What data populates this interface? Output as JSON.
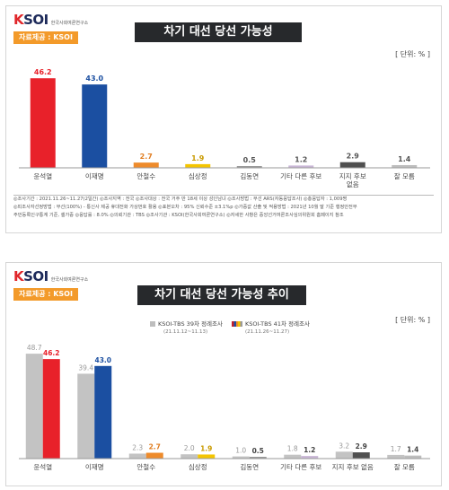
{
  "panels": {
    "top": {
      "logo": "KSOI",
      "logo_sub": "한국사회여론연구소",
      "source_badge": "자료제공 : KSOI",
      "title": "차기 대선 당선 가능성",
      "unit": "[ 단위: % ]",
      "footer": [
        "◎조사기간 : 2021.11.26~11.27(2일간)   ◎조사지역 : 전국   ◎조사대상 : 전국 거주 만 18세 이상 성인남녀   ◎조사방법 : 무선 ARS(자동응답조사)   ◎총응답자 : 1,009명",
        "◎피조사자선정방법 : 무선(100%) - 통신사 제공 휴대전화 가상번호 활용   ◎표본오차 : 95% 신뢰수준 ±3.1%p   ◎가중값 산출 및 적용방법 : 2021년 10월 말 기준 행정안전부",
        "주민등록인구통계 기준, 셀가중   ◎응답률 : 8.0%   ◎의뢰기관 : TBS   ◎조사기관 : KSOI(한국사회여론연구소)   ◎자세한 사항은 중앙선거여론조사심의위원회 홈페이지 참조"
      ]
    },
    "bottom": {
      "logo": "KSOI",
      "logo_sub": "한국사회여론연구소",
      "source_badge": "자료제공 : KSOI",
      "title": "차기 대선 당선 가능성 추이",
      "unit": "[ 단위: % ]",
      "legend_a": "KSOI-TBS 39차 정례조사",
      "legend_a_date": "(21.11.12~11.13)",
      "legend_b": "KSOI-TBS 41차 정례조사",
      "legend_b_date": "(21.11.26~11.27)"
    }
  },
  "colors": {
    "윤석열": "#e8212a",
    "이재명": "#1b4fa1",
    "안철수": "#ee8b2b",
    "심상정": "#f4c500",
    "김동연": "#9a9a9a",
    "기타 다른 후보": "#c9b6d6",
    "지지 후보 없음": "#505050",
    "잘 모름": "#bdbdbd",
    "previous": "#c3c3c3"
  },
  "chart_data": [
    {
      "type": "bar",
      "title": "차기 대선 당선 가능성",
      "categories": [
        "윤석열",
        "이재명",
        "안철수",
        "심상정",
        "김동연",
        "기타 다른 후보",
        "지지 후보 없음",
        "잘 모름"
      ],
      "values": [
        46.2,
        43.0,
        2.7,
        1.9,
        0.5,
        1.2,
        2.9,
        1.4
      ],
      "ylabel": "[ 단위: % ]",
      "ylim": [
        0,
        50
      ]
    },
    {
      "type": "bar",
      "title": "차기 대선 당선 가능성 추이",
      "categories": [
        "윤석열",
        "이재명",
        "안철수",
        "심상정",
        "김동연",
        "기타 다른 후보",
        "지지 후보 없음",
        "잘 모름"
      ],
      "series": [
        {
          "name": "KSOI-TBS 39차 정례조사",
          "values": [
            48.7,
            39.4,
            2.3,
            2.0,
            1.0,
            1.8,
            3.2,
            1.7
          ]
        },
        {
          "name": "KSOI-TBS 41차 정례조사",
          "values": [
            46.2,
            43.0,
            2.7,
            1.9,
            0.5,
            1.2,
            2.9,
            1.4
          ]
        }
      ],
      "ylabel": "[ 단위: % ]",
      "ylim": [
        0,
        50
      ]
    }
  ]
}
